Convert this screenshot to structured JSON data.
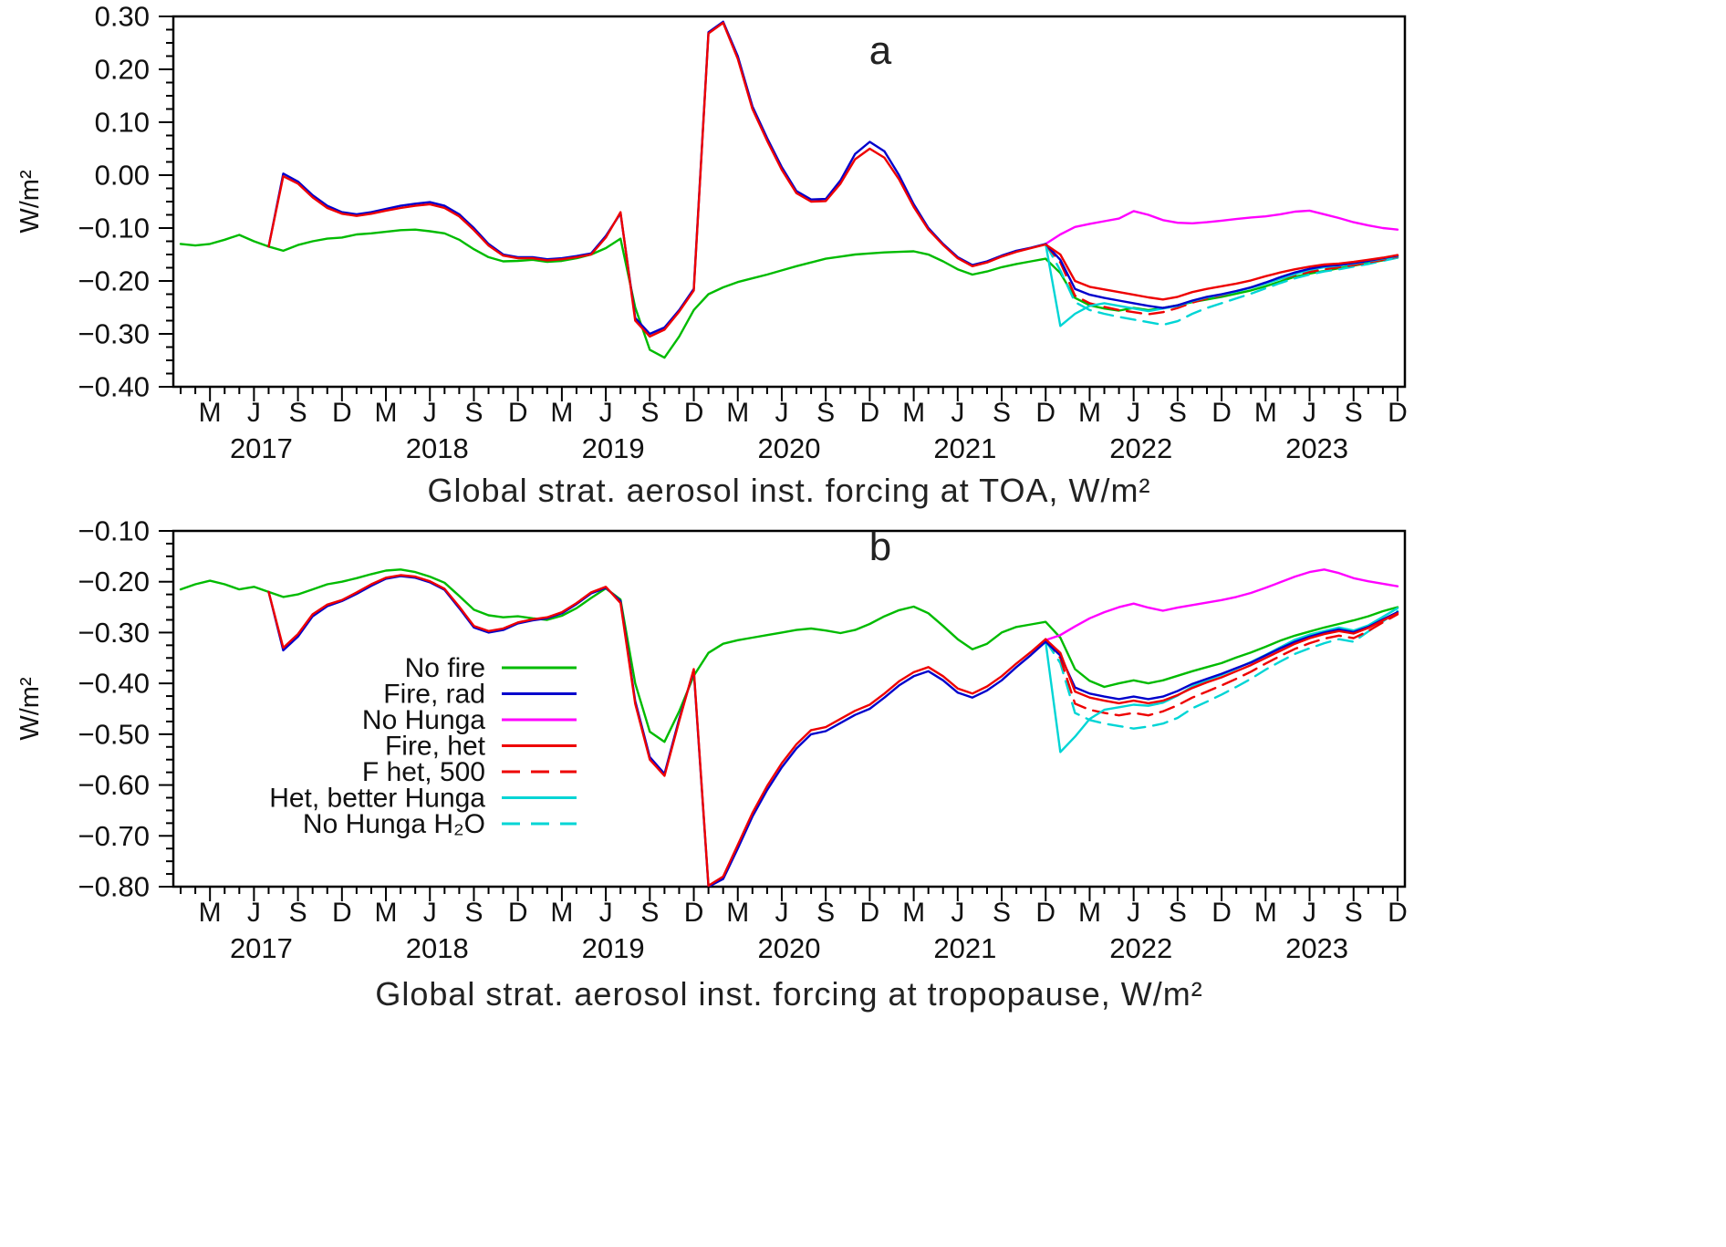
{
  "figure": {
    "x_axis": {
      "xlim": [
        2017.0,
        2024.0
      ],
      "n_points": 84,
      "start_month": "2017-01",
      "end_month": "2023-12",
      "quarter_labels": [
        "M",
        "J",
        "S",
        "D"
      ],
      "years": [
        2017,
        2018,
        2019,
        2020,
        2021,
        2022,
        2023
      ]
    },
    "legend": {
      "position": "inside panel b, left-center",
      "note": "labels right-aligned with line samples to the right"
    },
    "colors": {
      "green": "#00BB00",
      "blue": "#0000CC",
      "magenta": "#FF00FF",
      "red": "#EE0000",
      "cyan": "#00D5D5",
      "axis": "#000000"
    }
  },
  "chart_data": [
    {
      "type": "line",
      "panel_label": "a",
      "title": "Global strat. aerosol inst. forcing at TOA, W/m²",
      "ylabel": "W/m²",
      "ylim": [
        -0.4,
        0.3
      ],
      "yticks": [
        0.3,
        0.2,
        0.1,
        0.0,
        -0.1,
        -0.2,
        -0.3,
        -0.4
      ],
      "y_minor_step": 0.025,
      "x_note": "monthly values Jan 2017 - Dec 2023; start_index counts months from Jan 2017",
      "series": [
        {
          "name": "No fire",
          "color": "#00BB00",
          "dash": false,
          "start_index": 0,
          "values": [
            -0.13,
            -0.133,
            -0.13,
            -0.122,
            -0.113,
            -0.125,
            -0.135,
            -0.143,
            -0.132,
            -0.125,
            -0.12,
            -0.118,
            -0.112,
            -0.11,
            -0.107,
            -0.104,
            -0.103,
            -0.106,
            -0.11,
            -0.122,
            -0.14,
            -0.155,
            -0.163,
            -0.162,
            -0.16,
            -0.164,
            -0.162,
            -0.157,
            -0.15,
            -0.138,
            -0.12,
            -0.25,
            -0.33,
            -0.345,
            -0.305,
            -0.255,
            -0.225,
            -0.212,
            -0.202,
            -0.195,
            -0.188,
            -0.18,
            -0.172,
            -0.165,
            -0.158,
            -0.154,
            -0.15,
            -0.148,
            -0.146,
            -0.145,
            -0.144,
            -0.15,
            -0.163,
            -0.178,
            -0.188,
            -0.182,
            -0.174,
            -0.168,
            -0.163,
            -0.158,
            -0.185,
            -0.232,
            -0.246,
            -0.252,
            -0.256,
            -0.251,
            -0.255,
            -0.251,
            -0.246,
            -0.24,
            -0.235,
            -0.23,
            -0.224,
            -0.218,
            -0.21,
            -0.201,
            -0.192,
            -0.186,
            -0.181,
            -0.176,
            -0.171,
            -0.166,
            -0.161,
            -0.156
          ]
        },
        {
          "name": "Fire, rad",
          "color": "#0000CC",
          "dash": false,
          "start_index": 6,
          "values": [
            -0.135,
            0.003,
            -0.012,
            -0.038,
            -0.058,
            -0.07,
            -0.074,
            -0.07,
            -0.064,
            -0.058,
            -0.054,
            -0.051,
            -0.058,
            -0.074,
            -0.1,
            -0.13,
            -0.15,
            -0.155,
            -0.155,
            -0.159,
            -0.157,
            -0.153,
            -0.148,
            -0.115,
            -0.072,
            -0.27,
            -0.3,
            -0.288,
            -0.255,
            -0.215,
            0.27,
            0.29,
            0.225,
            0.13,
            0.07,
            0.015,
            -0.03,
            -0.046,
            -0.045,
            -0.01,
            0.04,
            0.063,
            0.045,
            0.0,
            -0.055,
            -0.1,
            -0.13,
            -0.155,
            -0.17,
            -0.163,
            -0.152,
            -0.143,
            -0.137,
            -0.13,
            -0.16,
            -0.215,
            -0.226,
            -0.232,
            -0.237,
            -0.242,
            -0.247,
            -0.251,
            -0.246,
            -0.237,
            -0.23,
            -0.225,
            -0.219,
            -0.212,
            -0.203,
            -0.193,
            -0.184,
            -0.177,
            -0.172,
            -0.17,
            -0.166,
            -0.162,
            -0.157,
            -0.152
          ]
        },
        {
          "name": "No Hunga",
          "color": "#FF00FF",
          "dash": false,
          "start_index": 59,
          "values": [
            -0.13,
            -0.112,
            -0.098,
            -0.092,
            -0.087,
            -0.082,
            -0.068,
            -0.075,
            -0.085,
            -0.09,
            -0.091,
            -0.089,
            -0.086,
            -0.083,
            -0.08,
            -0.078,
            -0.074,
            -0.069,
            -0.067,
            -0.074,
            -0.081,
            -0.089,
            -0.095,
            -0.1,
            -0.103
          ]
        },
        {
          "name": "Fire, het",
          "color": "#EE0000",
          "dash": false,
          "start_index": 6,
          "values": [
            -0.135,
            -0.002,
            -0.016,
            -0.042,
            -0.062,
            -0.073,
            -0.077,
            -0.073,
            -0.067,
            -0.062,
            -0.058,
            -0.055,
            -0.062,
            -0.078,
            -0.104,
            -0.133,
            -0.152,
            -0.157,
            -0.157,
            -0.161,
            -0.159,
            -0.155,
            -0.15,
            -0.118,
            -0.07,
            -0.275,
            -0.305,
            -0.292,
            -0.258,
            -0.218,
            0.268,
            0.288,
            0.22,
            0.125,
            0.065,
            0.01,
            -0.034,
            -0.05,
            -0.049,
            -0.016,
            0.03,
            0.05,
            0.033,
            -0.008,
            -0.06,
            -0.103,
            -0.132,
            -0.157,
            -0.172,
            -0.165,
            -0.154,
            -0.145,
            -0.138,
            -0.131,
            -0.15,
            -0.2,
            -0.211,
            -0.216,
            -0.221,
            -0.226,
            -0.231,
            -0.235,
            -0.23,
            -0.221,
            -0.215,
            -0.21,
            -0.205,
            -0.199,
            -0.191,
            -0.184,
            -0.178,
            -0.173,
            -0.169,
            -0.167,
            -0.164,
            -0.16,
            -0.156,
            -0.151
          ]
        },
        {
          "name": "F het, 500",
          "color": "#EE0000",
          "dash": true,
          "start_index": 59,
          "values": [
            -0.131,
            -0.165,
            -0.228,
            -0.242,
            -0.249,
            -0.255,
            -0.259,
            -0.263,
            -0.259,
            -0.251,
            -0.241,
            -0.233,
            -0.227,
            -0.22,
            -0.212,
            -0.204,
            -0.196,
            -0.189,
            -0.183,
            -0.178,
            -0.174,
            -0.17,
            -0.165,
            -0.16,
            -0.154
          ]
        },
        {
          "name": "Het, better Hunga",
          "color": "#00D5D5",
          "dash": false,
          "start_index": 59,
          "values": [
            -0.13,
            -0.285,
            -0.262,
            -0.247,
            -0.242,
            -0.247,
            -0.252,
            -0.257,
            -0.252,
            -0.247,
            -0.238,
            -0.231,
            -0.226,
            -0.22,
            -0.213,
            -0.205,
            -0.196,
            -0.187,
            -0.179,
            -0.174,
            -0.171,
            -0.167,
            -0.163,
            -0.158,
            -0.153
          ]
        },
        {
          "name": "No Hunga H₂O",
          "color": "#00D5D5",
          "dash": true,
          "start_index": 59,
          "values": [
            -0.13,
            -0.18,
            -0.24,
            -0.255,
            -0.262,
            -0.268,
            -0.273,
            -0.278,
            -0.283,
            -0.276,
            -0.262,
            -0.251,
            -0.242,
            -0.233,
            -0.224,
            -0.214,
            -0.204,
            -0.195,
            -0.188,
            -0.182,
            -0.178,
            -0.173,
            -0.168,
            -0.162,
            -0.156
          ]
        }
      ]
    },
    {
      "type": "line",
      "panel_label": "b",
      "title": "Global strat. aerosol inst. forcing at tropopause, W/m²",
      "ylabel": "W/m²",
      "ylim": [
        -0.8,
        -0.1
      ],
      "yticks": [
        -0.1,
        -0.2,
        -0.3,
        -0.4,
        -0.5,
        -0.6,
        -0.7,
        -0.8
      ],
      "y_minor_step": 0.025,
      "x_note": "monthly values Jan 2017 - Dec 2023; start_index counts months from Jan 2017",
      "series": [
        {
          "name": "No fire",
          "color": "#00BB00",
          "dash": false,
          "start_index": 0,
          "values": [
            -0.215,
            -0.205,
            -0.198,
            -0.205,
            -0.215,
            -0.21,
            -0.22,
            -0.23,
            -0.225,
            -0.215,
            -0.205,
            -0.2,
            -0.193,
            -0.185,
            -0.178,
            -0.176,
            -0.181,
            -0.19,
            -0.202,
            -0.228,
            -0.255,
            -0.266,
            -0.27,
            -0.268,
            -0.272,
            -0.275,
            -0.267,
            -0.252,
            -0.232,
            -0.213,
            -0.235,
            -0.4,
            -0.495,
            -0.515,
            -0.455,
            -0.385,
            -0.34,
            -0.322,
            -0.315,
            -0.31,
            -0.305,
            -0.3,
            -0.295,
            -0.292,
            -0.296,
            -0.301,
            -0.295,
            -0.283,
            -0.268,
            -0.256,
            -0.249,
            -0.262,
            -0.287,
            -0.313,
            -0.333,
            -0.322,
            -0.3,
            -0.289,
            -0.284,
            -0.279,
            -0.31,
            -0.372,
            -0.395,
            -0.407,
            -0.4,
            -0.394,
            -0.4,
            -0.394,
            -0.385,
            -0.376,
            -0.368,
            -0.36,
            -0.349,
            -0.339,
            -0.328,
            -0.316,
            -0.306,
            -0.298,
            -0.29,
            -0.283,
            -0.276,
            -0.268,
            -0.258,
            -0.25
          ]
        },
        {
          "name": "Fire, rad",
          "color": "#0000CC",
          "dash": false,
          "start_index": 6,
          "values": [
            -0.22,
            -0.335,
            -0.308,
            -0.268,
            -0.248,
            -0.238,
            -0.224,
            -0.208,
            -0.194,
            -0.189,
            -0.192,
            -0.201,
            -0.216,
            -0.252,
            -0.29,
            -0.3,
            -0.295,
            -0.282,
            -0.276,
            -0.272,
            -0.262,
            -0.244,
            -0.223,
            -0.212,
            -0.238,
            -0.435,
            -0.545,
            -0.578,
            -0.47,
            -0.375,
            -0.8,
            -0.785,
            -0.725,
            -0.662,
            -0.61,
            -0.565,
            -0.528,
            -0.5,
            -0.494,
            -0.478,
            -0.462,
            -0.45,
            -0.428,
            -0.404,
            -0.386,
            -0.376,
            -0.394,
            -0.418,
            -0.428,
            -0.414,
            -0.394,
            -0.368,
            -0.344,
            -0.318,
            -0.345,
            -0.408,
            -0.42,
            -0.426,
            -0.431,
            -0.426,
            -0.431,
            -0.426,
            -0.415,
            -0.401,
            -0.391,
            -0.381,
            -0.37,
            -0.359,
            -0.345,
            -0.331,
            -0.318,
            -0.308,
            -0.3,
            -0.294,
            -0.299,
            -0.289,
            -0.274,
            -0.26
          ]
        },
        {
          "name": "No Hunga",
          "color": "#FF00FF",
          "dash": false,
          "start_index": 59,
          "values": [
            -0.315,
            -0.305,
            -0.288,
            -0.272,
            -0.26,
            -0.25,
            -0.243,
            -0.251,
            -0.257,
            -0.251,
            -0.246,
            -0.241,
            -0.236,
            -0.23,
            -0.222,
            -0.212,
            -0.201,
            -0.19,
            -0.181,
            -0.176,
            -0.183,
            -0.193,
            -0.199,
            -0.204,
            -0.209
          ]
        },
        {
          "name": "Fire, het",
          "color": "#EE0000",
          "dash": false,
          "start_index": 6,
          "values": [
            -0.22,
            -0.33,
            -0.303,
            -0.264,
            -0.245,
            -0.236,
            -0.221,
            -0.205,
            -0.192,
            -0.187,
            -0.19,
            -0.199,
            -0.214,
            -0.249,
            -0.287,
            -0.297,
            -0.292,
            -0.28,
            -0.274,
            -0.27,
            -0.26,
            -0.242,
            -0.221,
            -0.21,
            -0.242,
            -0.44,
            -0.55,
            -0.582,
            -0.474,
            -0.372,
            -0.798,
            -0.78,
            -0.718,
            -0.655,
            -0.602,
            -0.557,
            -0.52,
            -0.492,
            -0.486,
            -0.47,
            -0.454,
            -0.442,
            -0.42,
            -0.396,
            -0.378,
            -0.368,
            -0.386,
            -0.41,
            -0.42,
            -0.406,
            -0.386,
            -0.361,
            -0.338,
            -0.313,
            -0.34,
            -0.416,
            -0.428,
            -0.434,
            -0.439,
            -0.434,
            -0.439,
            -0.434,
            -0.423,
            -0.409,
            -0.398,
            -0.388,
            -0.376,
            -0.364,
            -0.35,
            -0.336,
            -0.322,
            -0.311,
            -0.303,
            -0.297,
            -0.302,
            -0.291,
            -0.276,
            -0.262
          ]
        },
        {
          "name": "F het, 500",
          "color": "#EE0000",
          "dash": true,
          "start_index": 59,
          "values": [
            -0.313,
            -0.35,
            -0.44,
            -0.452,
            -0.458,
            -0.463,
            -0.458,
            -0.463,
            -0.455,
            -0.443,
            -0.428,
            -0.416,
            -0.404,
            -0.391,
            -0.377,
            -0.361,
            -0.346,
            -0.332,
            -0.321,
            -0.312,
            -0.306,
            -0.311,
            -0.297,
            -0.28,
            -0.264
          ]
        },
        {
          "name": "Het, better Hunga",
          "color": "#00D5D5",
          "dash": false,
          "start_index": 59,
          "values": [
            -0.318,
            -0.535,
            -0.505,
            -0.47,
            -0.452,
            -0.447,
            -0.442,
            -0.444,
            -0.438,
            -0.424,
            -0.406,
            -0.394,
            -0.383,
            -0.371,
            -0.358,
            -0.344,
            -0.329,
            -0.314,
            -0.304,
            -0.297,
            -0.29,
            -0.296,
            -0.286,
            -0.269,
            -0.252
          ]
        },
        {
          "name": "No Hunga H₂O",
          "color": "#00D5D5",
          "dash": true,
          "start_index": 59,
          "values": [
            -0.316,
            -0.36,
            -0.458,
            -0.472,
            -0.479,
            -0.484,
            -0.489,
            -0.485,
            -0.479,
            -0.468,
            -0.449,
            -0.436,
            -0.422,
            -0.407,
            -0.391,
            -0.373,
            -0.357,
            -0.342,
            -0.331,
            -0.321,
            -0.313,
            -0.318,
            -0.298,
            -0.278,
            -0.258
          ]
        }
      ]
    }
  ]
}
